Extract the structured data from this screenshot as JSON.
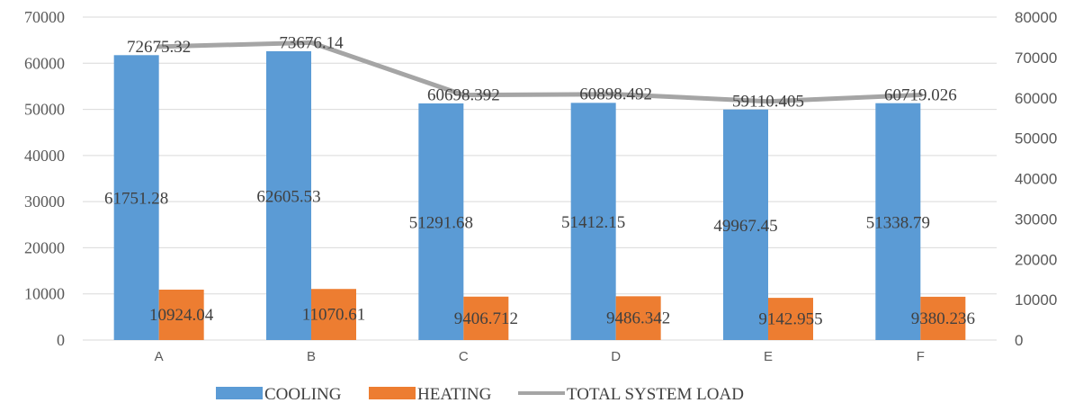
{
  "chart_data": {
    "type": "bar",
    "categories": [
      "A",
      "B",
      "C",
      "D",
      "E",
      "F"
    ],
    "series": [
      {
        "name": "COOLING",
        "kind": "bar",
        "axis": "left",
        "color": "#5B9BD5",
        "values": [
          61751.28,
          62605.53,
          51291.68,
          51412.15,
          49967.45,
          51338.79
        ],
        "labels": [
          "61751.28",
          "62605.53",
          "51291.68",
          "51412.15",
          "49967.45",
          "51338.79"
        ]
      },
      {
        "name": "HEATING",
        "kind": "bar",
        "axis": "left",
        "color": "#ED7D31",
        "values": [
          10924.04,
          11070.61,
          9406.712,
          9486.342,
          9142.955,
          9380.236
        ],
        "labels": [
          "10924.04",
          "11070.61",
          "9406.712",
          "9486.342",
          "9142.955",
          "9380.236"
        ]
      },
      {
        "name": "TOTAL SYSTEM LOAD",
        "kind": "line",
        "axis": "right",
        "color": "#A5A5A5",
        "values": [
          72675.32,
          73676.14,
          60698.392,
          60898.492,
          59110.405,
          60719.026
        ],
        "labels": [
          "72675.32",
          "73676.14",
          "60698.392",
          "60898.492",
          "59110.405",
          "60719.026"
        ]
      }
    ],
    "left_axis": {
      "min": 0,
      "max": 70000,
      "ticks": [
        "0",
        "10000",
        "20000",
        "30000",
        "40000",
        "50000",
        "60000",
        "70000"
      ]
    },
    "right_axis": {
      "min": 0,
      "max": 80000,
      "ticks": [
        "0",
        "10000",
        "20000",
        "30000",
        "40000",
        "50000",
        "60000",
        "70000",
        "80000"
      ]
    },
    "grid": true,
    "legend_position": "bottom"
  }
}
